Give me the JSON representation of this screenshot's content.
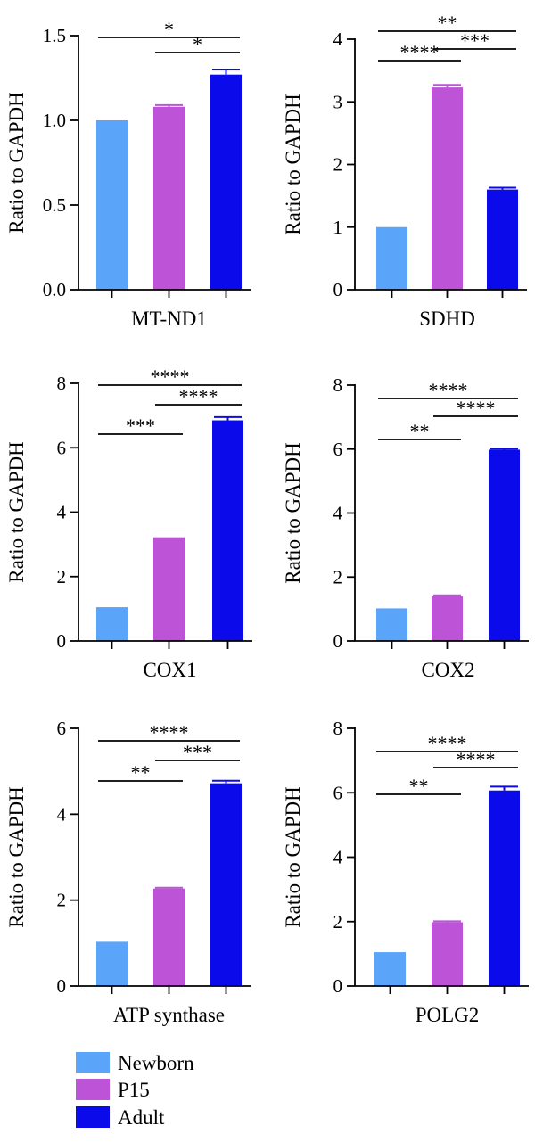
{
  "colors": {
    "newborn": "#5aa5f9",
    "p15": "#bd54d8",
    "adult": "#0a0aeb",
    "axis": "#000000"
  },
  "legend": {
    "placement": "bottom-left",
    "items": [
      {
        "label": "Newborn",
        "color": "#5aa5f9"
      },
      {
        "label": "P15",
        "color": "#bd54d8"
      },
      {
        "label": "Adult",
        "color": "#0a0aeb"
      }
    ]
  },
  "chart_data": [
    {
      "type": "bar",
      "xlabel": "MT-ND1",
      "ylabel": "Ratio to GAPDH",
      "ylim": [
        0,
        1.5
      ],
      "yticks": [
        "0.0",
        "0.5",
        "1.0",
        "1.5"
      ],
      "categories": [
        "Newborn",
        "P15",
        "Adult"
      ],
      "values": [
        1.0,
        1.08,
        1.27
      ],
      "errors": [
        0,
        0.01,
        0.03
      ],
      "comparisons": [
        {
          "from": 0,
          "to": 2,
          "label": "*"
        },
        {
          "from": 1,
          "to": 2,
          "label": "*"
        }
      ]
    },
    {
      "type": "bar",
      "xlabel": "SDHD",
      "ylabel": "Ratio to GAPDH",
      "ylim": [
        0,
        4
      ],
      "yticks": [
        "0",
        "1",
        "2",
        "3",
        "4"
      ],
      "categories": [
        "Newborn",
        "P15",
        "Adult"
      ],
      "values": [
        1.0,
        3.23,
        1.6
      ],
      "errors": [
        0,
        0.04,
        0.03
      ],
      "comparisons": [
        {
          "from": 0,
          "to": 2,
          "label": "**"
        },
        {
          "from": 0,
          "to": 1,
          "label": "****"
        },
        {
          "from": 1,
          "to": 2,
          "label": "***"
        }
      ]
    },
    {
      "type": "bar",
      "xlabel": "COX1",
      "ylabel": "Ratio to GAPDH",
      "ylim": [
        0,
        8
      ],
      "yticks": [
        "0",
        "2",
        "4",
        "6",
        "8"
      ],
      "categories": [
        "Newborn",
        "P15",
        "Adult"
      ],
      "values": [
        1.05,
        3.22,
        6.85
      ],
      "errors": [
        0,
        0,
        0.1
      ],
      "comparisons": [
        {
          "from": 0,
          "to": 2,
          "label": "****"
        },
        {
          "from": 1,
          "to": 2,
          "label": "****"
        },
        {
          "from": 0,
          "to": 1,
          "label": "***"
        }
      ]
    },
    {
      "type": "bar",
      "xlabel": "COX2",
      "ylabel": "Ratio to GAPDH",
      "ylim": [
        0,
        8
      ],
      "yticks": [
        "0",
        "2",
        "4",
        "6",
        "8"
      ],
      "categories": [
        "Newborn",
        "P15",
        "Adult"
      ],
      "values": [
        1.02,
        1.4,
        5.98
      ],
      "errors": [
        0,
        0.03,
        0.03
      ],
      "comparisons": [
        {
          "from": 0,
          "to": 2,
          "label": "****"
        },
        {
          "from": 1,
          "to": 2,
          "label": "****"
        },
        {
          "from": 0,
          "to": 1,
          "label": "**"
        }
      ]
    },
    {
      "type": "bar",
      "xlabel": "ATP synthase",
      "ylabel": "Ratio to GAPDH",
      "ylim": [
        0,
        6
      ],
      "yticks": [
        "0",
        "2",
        "4",
        "6"
      ],
      "categories": [
        "Newborn",
        "P15",
        "Adult"
      ],
      "values": [
        1.03,
        2.27,
        4.72
      ],
      "errors": [
        0,
        0.02,
        0.06
      ],
      "comparisons": [
        {
          "from": 0,
          "to": 2,
          "label": "****"
        },
        {
          "from": 0,
          "to": 1,
          "label": "**"
        },
        {
          "from": 1,
          "to": 2,
          "label": "***"
        }
      ]
    },
    {
      "type": "bar",
      "xlabel": "POLG2",
      "ylabel": "Ratio to GAPDH",
      "ylim": [
        0,
        8
      ],
      "yticks": [
        "0",
        "2",
        "4",
        "6",
        "8"
      ],
      "categories": [
        "Newborn",
        "P15",
        "Adult"
      ],
      "values": [
        1.05,
        1.98,
        6.07
      ],
      "errors": [
        0,
        0.03,
        0.12
      ],
      "comparisons": [
        {
          "from": 0,
          "to": 2,
          "label": "****"
        },
        {
          "from": 1,
          "to": 2,
          "label": "****"
        },
        {
          "from": 0,
          "to": 1,
          "label": "**"
        }
      ]
    }
  ]
}
